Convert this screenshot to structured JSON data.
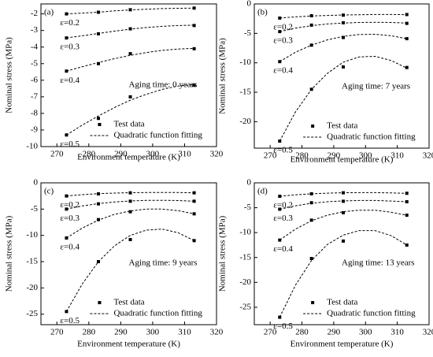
{
  "chart_data": [
    {
      "type": "scatter",
      "panel_label": "(a)",
      "annotation": "Aging time: 0 years",
      "x_label": "Environment temperature  (K)",
      "y_label": "Nominal stress (MPa)",
      "xlim": [
        265,
        320
      ],
      "xticks": [
        270,
        280,
        290,
        300,
        310,
        320
      ],
      "ylim": [
        -10,
        -1.4
      ],
      "yticks": [
        -2,
        -3,
        -4,
        -5,
        -6,
        -7,
        -8,
        -9,
        -10
      ],
      "legend": [
        "Test data",
        "Quadratic function fitting"
      ],
      "color": "#000000",
      "x": [
        273,
        283,
        293,
        313
      ],
      "fit_x": [
        273,
        278,
        283,
        288,
        293,
        298,
        303,
        308,
        313
      ],
      "strains": [
        {
          "label": "ε=0.2",
          "values": [
            -2.0,
            -1.9,
            -1.75,
            -1.65
          ],
          "fit": [
            -2.0,
            -1.95,
            -1.9,
            -1.82,
            -1.76,
            -1.72,
            -1.68,
            -1.66,
            -1.65
          ]
        },
        {
          "label": "ε=0.3",
          "values": [
            -3.45,
            -3.2,
            -2.9,
            -2.7
          ],
          "fit": [
            -3.45,
            -3.32,
            -3.18,
            -3.04,
            -2.92,
            -2.82,
            -2.75,
            -2.7,
            -2.68
          ]
        },
        {
          "label": "ε=0.4",
          "values": [
            -5.45,
            -5.0,
            -4.4,
            -4.1
          ],
          "fit": [
            -5.45,
            -5.18,
            -4.93,
            -4.7,
            -4.5,
            -4.33,
            -4.2,
            -4.12,
            -4.08
          ]
        },
        {
          "label": "ε=0.5",
          "values": [
            -9.3,
            -8.3,
            -7.0,
            -6.3
          ],
          "fit": [
            -9.3,
            -8.7,
            -8.15,
            -7.65,
            -7.2,
            -6.85,
            -6.55,
            -6.35,
            -6.25
          ]
        }
      ]
    },
    {
      "type": "scatter",
      "panel_label": "(b)",
      "annotation": "Aging time: 7 years",
      "x_label": "Environment temperature  (K)",
      "y_label": "Nominal stress (MPa)",
      "xlim": [
        265,
        320
      ],
      "xticks": [
        270,
        280,
        290,
        300,
        310,
        320
      ],
      "ylim": [
        -24.5,
        0
      ],
      "yticks": [
        0,
        -5,
        -10,
        -15,
        -20
      ],
      "legend": [
        "Test data",
        "Quadratic function fitting"
      ],
      "color": "#000000",
      "x": [
        273,
        283,
        293,
        313
      ],
      "fit_x": [
        273,
        278,
        283,
        288,
        293,
        298,
        303,
        308,
        313
      ],
      "strains": [
        {
          "label": "ε=0.2",
          "values": [
            -2.4,
            -2.0,
            -1.9,
            -1.8
          ],
          "fit": [
            -2.4,
            -2.2,
            -2.05,
            -1.95,
            -1.88,
            -1.83,
            -1.8,
            -1.8,
            -1.82
          ]
        },
        {
          "label": "ε=0.3",
          "values": [
            -4.7,
            -3.6,
            -3.2,
            -3.3
          ],
          "fit": [
            -4.7,
            -4.1,
            -3.7,
            -3.4,
            -3.25,
            -3.15,
            -3.12,
            -3.15,
            -3.25
          ]
        },
        {
          "label": "ε=0.4",
          "values": [
            -9.8,
            -7.0,
            -5.7,
            -5.9
          ],
          "fit": [
            -9.8,
            -8.2,
            -7.0,
            -6.1,
            -5.5,
            -5.2,
            -5.15,
            -5.4,
            -5.9
          ]
        },
        {
          "label": "ε=0.5",
          "values": [
            -23.3,
            -14.5,
            -10.7,
            -10.8
          ],
          "fit": [
            -23.3,
            -18.3,
            -14.5,
            -11.8,
            -9.9,
            -9.0,
            -8.9,
            -9.6,
            -10.9
          ]
        }
      ]
    },
    {
      "type": "scatter",
      "panel_label": "(c)",
      "annotation": "Aging time: 9 years",
      "x_label": "Environment temperature  (K)",
      "y_label": "Nominal stress (MPa)",
      "xlim": [
        265,
        320
      ],
      "xticks": [
        270,
        280,
        290,
        300,
        310,
        320
      ],
      "ylim": [
        -27,
        0
      ],
      "yticks": [
        0,
        -5,
        -10,
        -15,
        -20,
        -25
      ],
      "legend": [
        "Test data",
        "Quadratic function fitting"
      ],
      "color": "#000000",
      "x": [
        273,
        283,
        293,
        313
      ],
      "fit_x": [
        273,
        278,
        283,
        288,
        293,
        298,
        303,
        308,
        313
      ],
      "strains": [
        {
          "label": "ε=0.2",
          "values": [
            -2.5,
            -2.1,
            -1.9,
            -1.9
          ],
          "fit": [
            -2.5,
            -2.25,
            -2.05,
            -1.95,
            -1.88,
            -1.84,
            -1.83,
            -1.85,
            -1.9
          ]
        },
        {
          "label": "ε=0.3",
          "values": [
            -5.0,
            -4.0,
            -3.5,
            -3.5
          ],
          "fit": [
            -5.0,
            -4.4,
            -3.95,
            -3.65,
            -3.45,
            -3.35,
            -3.33,
            -3.38,
            -3.5
          ]
        },
        {
          "label": "ε=0.4",
          "values": [
            -10.5,
            -7.0,
            -5.5,
            -5.9
          ],
          "fit": [
            -10.5,
            -8.6,
            -7.1,
            -6.0,
            -5.35,
            -5.0,
            -5.0,
            -5.3,
            -5.9
          ]
        },
        {
          "label": "ε=0.5",
          "values": [
            -24.5,
            -15.0,
            -10.8,
            -11.0
          ],
          "fit": [
            -24.5,
            -19.2,
            -15.0,
            -12.0,
            -10.0,
            -9.0,
            -8.8,
            -9.5,
            -11.0
          ]
        }
      ]
    },
    {
      "type": "scatter",
      "panel_label": "(d)",
      "annotation": "Aging time: 13 years",
      "x_label": "Environment temperature  (K)",
      "y_label": "Nominal stress (MPa)",
      "xlim": [
        265,
        320
      ],
      "xticks": [
        270,
        280,
        290,
        300,
        310,
        320
      ],
      "ylim": [
        -28.5,
        0
      ],
      "yticks": [
        0,
        -5,
        -10,
        -15,
        -20,
        -25
      ],
      "legend": [
        "Test data",
        "Quadratic function fitting"
      ],
      "color": "#000000",
      "x": [
        273,
        283,
        293,
        313
      ],
      "fit_x": [
        273,
        278,
        283,
        288,
        293,
        298,
        303,
        308,
        313
      ],
      "strains": [
        {
          "label": "ε=0.2",
          "values": [
            -2.7,
            -2.2,
            -2.0,
            -2.1
          ],
          "fit": [
            -2.7,
            -2.4,
            -2.2,
            -2.07,
            -2.0,
            -1.97,
            -1.97,
            -2.02,
            -2.1
          ]
        },
        {
          "label": "ε=0.3",
          "values": [
            -5.3,
            -4.0,
            -3.7,
            -3.8
          ],
          "fit": [
            -5.3,
            -4.6,
            -4.1,
            -3.8,
            -3.62,
            -3.55,
            -3.55,
            -3.65,
            -3.8
          ]
        },
        {
          "label": "ε=0.4",
          "values": [
            -11.5,
            -7.5,
            -6.0,
            -6.5
          ],
          "fit": [
            -11.5,
            -9.3,
            -7.6,
            -6.5,
            -5.8,
            -5.5,
            -5.5,
            -5.9,
            -6.5
          ]
        },
        {
          "label": "ε=0.5",
          "values": [
            -27.0,
            -15.2,
            -11.7,
            -12.5
          ],
          "fit": [
            -27.0,
            -20.5,
            -15.6,
            -12.4,
            -10.5,
            -9.6,
            -9.6,
            -10.6,
            -12.5
          ]
        }
      ]
    }
  ]
}
